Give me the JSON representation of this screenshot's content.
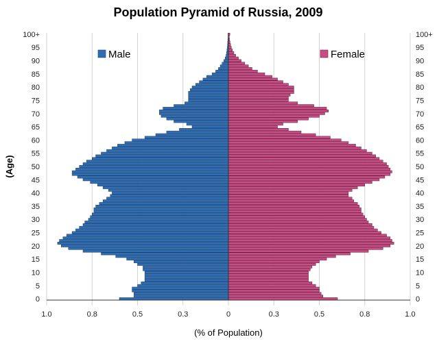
{
  "chart_data": {
    "type": "bar",
    "orientation": "horizontal-pyramid",
    "title": "Population Pyramid of Russia, 2009",
    "xlabel": "(% of Population)",
    "ylabel": "(Age)",
    "xlim": [
      -1.0,
      1.0
    ],
    "ylim": [
      0,
      100
    ],
    "x_tick_values": [
      -1.0,
      -0.75,
      -0.5,
      -0.25,
      0,
      0.25,
      0.5,
      0.75,
      1.0
    ],
    "x_tick_labels": [
      "1.0",
      "0.8",
      "0.5",
      "0.3",
      "0",
      "0.3",
      "0.5",
      "0.8",
      "1.0"
    ],
    "y_tick_values": [
      0,
      5,
      10,
      15,
      20,
      25,
      30,
      35,
      40,
      45,
      50,
      55,
      60,
      65,
      70,
      75,
      80,
      85,
      90,
      95,
      100
    ],
    "y_tick_labels": [
      "0",
      "5",
      "10",
      "15",
      "20",
      "25",
      "30",
      "35",
      "40",
      "45",
      "50",
      "55",
      "60",
      "65",
      "70",
      "75",
      "80",
      "85",
      "90",
      "95",
      "100+"
    ],
    "legend_placement": "top-left (Male), top-right (Female)",
    "grid": "vertical gridlines",
    "series": [
      {
        "name": "Male",
        "color": "#2f6db5",
        "values": [
          0.6,
          0.52,
          0.52,
          0.53,
          0.53,
          0.5,
          0.48,
          0.46,
          0.46,
          0.46,
          0.46,
          0.47,
          0.47,
          0.5,
          0.52,
          0.56,
          0.62,
          0.7,
          0.8,
          0.88,
          0.92,
          0.94,
          0.93,
          0.91,
          0.89,
          0.86,
          0.84,
          0.82,
          0.8,
          0.79,
          0.77,
          0.76,
          0.75,
          0.74,
          0.74,
          0.73,
          0.71,
          0.69,
          0.67,
          0.65,
          0.64,
          0.66,
          0.69,
          0.72,
          0.76,
          0.8,
          0.83,
          0.86,
          0.86,
          0.84,
          0.82,
          0.8,
          0.78,
          0.75,
          0.73,
          0.7,
          0.67,
          0.64,
          0.61,
          0.57,
          0.53,
          0.46,
          0.4,
          0.34,
          0.27,
          0.2,
          0.23,
          0.3,
          0.34,
          0.37,
          0.38,
          0.38,
          0.36,
          0.3,
          0.24,
          0.22,
          0.22,
          0.22,
          0.22,
          0.21,
          0.2,
          0.18,
          0.16,
          0.14,
          0.12,
          0.09,
          0.07,
          0.055,
          0.045,
          0.035,
          0.025,
          0.018,
          0.013,
          0.01,
          0.008,
          0.006,
          0.005,
          0.004,
          0.003,
          0.002,
          0.002
        ]
      },
      {
        "name": "Female",
        "color": "#c84d84",
        "values": [
          0.6,
          0.52,
          0.51,
          0.5,
          0.5,
          0.48,
          0.46,
          0.44,
          0.44,
          0.44,
          0.44,
          0.45,
          0.46,
          0.48,
          0.5,
          0.54,
          0.59,
          0.67,
          0.77,
          0.85,
          0.89,
          0.91,
          0.9,
          0.89,
          0.87,
          0.84,
          0.82,
          0.8,
          0.79,
          0.77,
          0.76,
          0.75,
          0.74,
          0.73,
          0.73,
          0.72,
          0.71,
          0.69,
          0.68,
          0.66,
          0.66,
          0.68,
          0.71,
          0.75,
          0.79,
          0.83,
          0.86,
          0.89,
          0.9,
          0.89,
          0.88,
          0.87,
          0.85,
          0.83,
          0.81,
          0.79,
          0.76,
          0.73,
          0.7,
          0.66,
          0.62,
          0.56,
          0.48,
          0.4,
          0.33,
          0.27,
          0.3,
          0.38,
          0.44,
          0.5,
          0.53,
          0.55,
          0.54,
          0.47,
          0.38,
          0.33,
          0.33,
          0.34,
          0.36,
          0.36,
          0.36,
          0.33,
          0.3,
          0.27,
          0.24,
          0.2,
          0.16,
          0.13,
          0.11,
          0.09,
          0.07,
          0.055,
          0.04,
          0.03,
          0.022,
          0.016,
          0.012,
          0.009,
          0.006,
          0.005,
          0.008
        ]
      }
    ]
  }
}
